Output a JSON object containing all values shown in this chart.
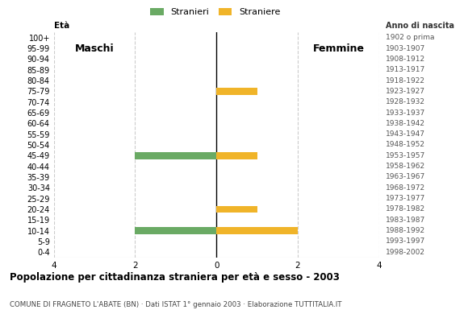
{
  "age_groups": [
    "0-4",
    "5-9",
    "10-14",
    "15-19",
    "20-24",
    "25-29",
    "30-34",
    "35-39",
    "40-44",
    "45-49",
    "50-54",
    "55-59",
    "60-64",
    "65-69",
    "70-74",
    "75-79",
    "80-84",
    "85-89",
    "90-94",
    "95-99",
    "100+"
  ],
  "birth_years": [
    "1998-2002",
    "1993-1997",
    "1988-1992",
    "1983-1987",
    "1978-1982",
    "1973-1977",
    "1968-1972",
    "1963-1967",
    "1958-1962",
    "1953-1957",
    "1948-1952",
    "1943-1947",
    "1938-1942",
    "1933-1937",
    "1928-1932",
    "1923-1927",
    "1918-1922",
    "1913-1917",
    "1908-1912",
    "1903-1907",
    "1902 o prima"
  ],
  "males": [
    0,
    0,
    2,
    0,
    0,
    0,
    0,
    0,
    0,
    2,
    0,
    0,
    0,
    0,
    0,
    0,
    0,
    0,
    0,
    0,
    0
  ],
  "females": [
    0,
    0,
    2,
    0,
    1,
    0,
    0,
    0,
    0,
    1,
    0,
    0,
    0,
    0,
    0,
    1,
    0,
    0,
    0,
    0,
    0
  ],
  "male_color": "#6aaa64",
  "female_color": "#f0b429",
  "male_label": "Stranieri",
  "female_label": "Straniere",
  "xlim": 4,
  "title": "Popolazione per cittadinanza straniera per età e sesso - 2003",
  "subtitle": "COMUNE DI FRAGNETO L'ABATE (BN) · Dati ISTAT 1° gennaio 2003 · Elaborazione TUTTITALIA.IT",
  "xlabel_left": "Maschi",
  "xlabel_right": "Femmine",
  "ylabel_age": "Età",
  "ylabel_birth": "Anno di nascita",
  "background_color": "#ffffff",
  "grid_color": "#cccccc"
}
